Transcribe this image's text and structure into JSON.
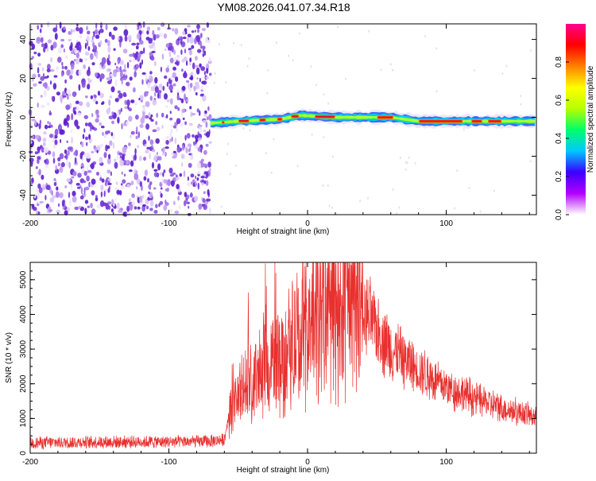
{
  "figure_title": "YM08.2026.041.07.34.R18",
  "colors": {
    "snr_line": "#e8302e",
    "scatter": "#7a3fd8",
    "axis": "#000000"
  },
  "colorbar": {
    "label": "Normalized spectral amplitude",
    "ticks": [
      {
        "value": 0.0,
        "label": "0.0"
      },
      {
        "value": 0.2,
        "label": "0.2"
      },
      {
        "value": 0.4,
        "label": "0.4"
      },
      {
        "value": 0.6,
        "label": "0.6"
      },
      {
        "value": 0.8,
        "label": "0.8"
      }
    ],
    "range": [
      0,
      1
    ],
    "gradient": [
      "#ffffff",
      "#b300ff",
      "#3a00ff",
      "#00c8ff",
      "#00ff6a",
      "#b6ff00",
      "#ffff00",
      "#ff8000",
      "#ff0000",
      "#ff0090"
    ]
  },
  "chart_data": [
    {
      "type": "heatmap",
      "title": "",
      "xlabel": "Height of straight line (km)",
      "ylabel": "Frequency (Hz)",
      "xlim": [
        -200,
        165
      ],
      "ylim": [
        -50,
        48
      ],
      "xticks": [
        -200,
        -100,
        0,
        100
      ],
      "yticks": [
        -40,
        -20,
        0,
        20,
        40
      ],
      "noise_region_x": [
        -200,
        -70
      ],
      "signal_band": {
        "x_start": -70,
        "x_end": 165,
        "center_freq_hz": 0,
        "ridge_freq": [
          {
            "x": -70,
            "y": -3
          },
          {
            "x": -50,
            "y": -2
          },
          {
            "x": -20,
            "y": -1
          },
          {
            "x": -5,
            "y": 1
          },
          {
            "x": 20,
            "y": 0
          },
          {
            "x": 60,
            "y": 0
          },
          {
            "x": 80,
            "y": -2
          },
          {
            "x": 120,
            "y": -2
          },
          {
            "x": 165,
            "y": -2
          }
        ]
      }
    },
    {
      "type": "line",
      "title": "",
      "xlabel": "Height of straight line (km)",
      "ylabel": "SNR (10 * v/v)",
      "xlim": [
        -200,
        165
      ],
      "ylim": [
        0,
        5500
      ],
      "xticks": [
        -200,
        -100,
        0,
        100
      ],
      "yticks": [
        0,
        1000,
        2000,
        3000,
        4000,
        5000
      ],
      "series": [
        {
          "name": "SNR",
          "envelope": {
            "x": [
              -200,
              -150,
              -100,
              -70,
              -60,
              -55,
              -50,
              -40,
              -30,
              -20,
              -10,
              0,
              10,
              20,
              30,
              40,
              50,
              60,
              80,
              100,
              120,
              140,
              165
            ],
            "y": [
              300,
              320,
              330,
              340,
              400,
              1500,
              1700,
              2000,
              2400,
              2800,
              3100,
              3400,
              3900,
              4200,
              4300,
              4000,
              3600,
              3000,
              2400,
              1900,
              1600,
              1300,
              1050
            ]
          }
        }
      ]
    }
  ]
}
